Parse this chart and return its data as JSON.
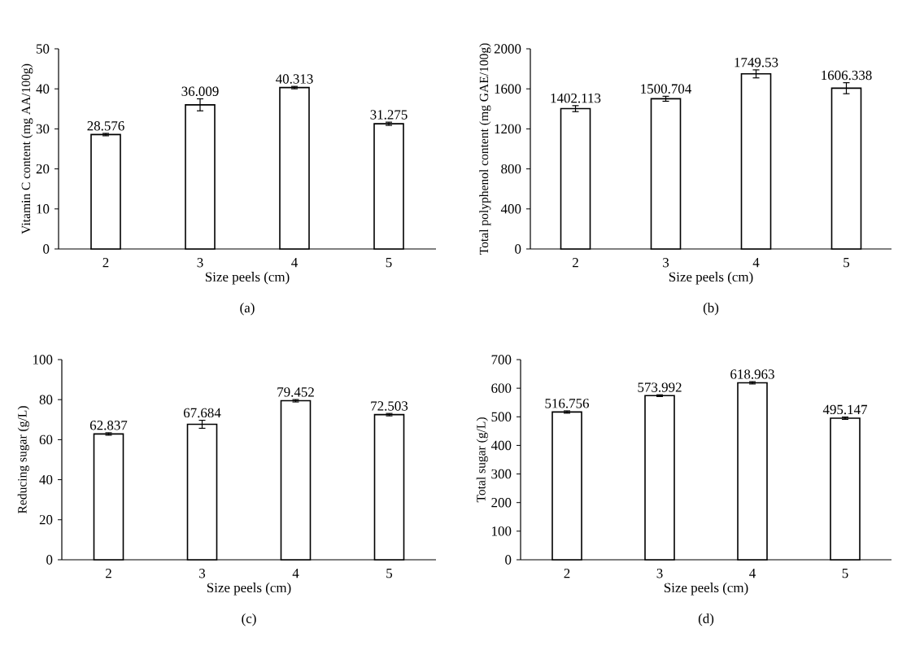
{
  "chart_data": [
    {
      "type": "bar",
      "categories": [
        "2",
        "3",
        "4",
        "5"
      ],
      "values": [
        28.576,
        36.009,
        40.313,
        31.275
      ],
      "errors": [
        0.3,
        1.5,
        0.3,
        0.4
      ],
      "color": "#ffffff",
      "ylim": [
        0,
        50
      ],
      "yticks": [
        0,
        10,
        20,
        30,
        40,
        50
      ],
      "xlabel": "Size peels (cm)",
      "ylabel": "Vitamin C content (mg AA/100g)",
      "data_labels": true,
      "annotations": [
        "(a)"
      ]
    },
    {
      "type": "bar",
      "categories": [
        "2",
        "3",
        "4",
        "5"
      ],
      "values": [
        1402.113,
        1500.704,
        1749.53,
        1606.338
      ],
      "errors": [
        30,
        25,
        40,
        55
      ],
      "color": "#ffffff",
      "ylim": [
        0,
        2000
      ],
      "yticks": [
        0,
        400,
        800,
        1200,
        1600,
        2000
      ],
      "xlabel": "Size peels (cm)",
      "ylabel": "Total polyphenol content (mg GAE/100g)",
      "data_labels": true,
      "annotations": [
        "(b)"
      ]
    },
    {
      "type": "bar",
      "categories": [
        "2",
        "3",
        "4",
        "5"
      ],
      "values": [
        62.837,
        67.684,
        79.452,
        72.503
      ],
      "errors": [
        0.6,
        2.0,
        0.6,
        0.6
      ],
      "color": "#ffffff",
      "ylim": [
        0,
        100
      ],
      "yticks": [
        0,
        20,
        40,
        60,
        80,
        100
      ],
      "xlabel": "Size peels (cm)",
      "ylabel": "Reducing sugar (g/L)",
      "data_labels": true,
      "annotations": [
        "(c)"
      ]
    },
    {
      "type": "bar",
      "categories": [
        "2",
        "3",
        "4",
        "5"
      ],
      "values": [
        516.756,
        573.992,
        618.963,
        495.147
      ],
      "errors": [
        4,
        3,
        4,
        4
      ],
      "color": "#ffffff",
      "ylim": [
        0,
        700
      ],
      "yticks": [
        0,
        100,
        200,
        300,
        400,
        500,
        600,
        700
      ],
      "xlabel": "Size peels (cm)",
      "ylabel": "Total sugar (g/L)",
      "data_labels": true,
      "annotations": [
        "(d)"
      ]
    }
  ]
}
